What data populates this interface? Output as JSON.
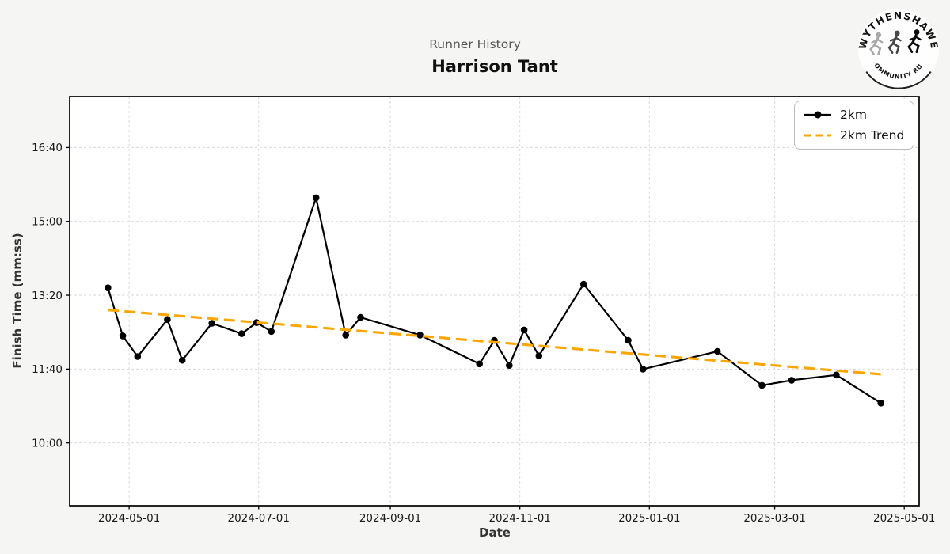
{
  "header": {
    "subtitle": "Runner History",
    "title": "Harrison Tant"
  },
  "logo": {
    "top_text": "WYTHENSHAWE",
    "bottom_text": "COMMUNITY RUN"
  },
  "colors": {
    "series": "#000000",
    "trend": "#FFA500",
    "background": "#f5f5f4",
    "plot_background": "#ffffff",
    "grid": "#d9d9d9",
    "spine": "#000000",
    "subtitle_text": "#555555",
    "title_text": "#111111"
  },
  "chart_data": {
    "type": "line",
    "title": "Runner History",
    "subtitle": "Harrison Tant",
    "xlabel": "Date",
    "ylabel": "Finish Time (mm:ss)",
    "grid": true,
    "legend_position": "upper right",
    "x_ticks": [
      "2024-05-01",
      "2024-07-01",
      "2024-09-01",
      "2024-11-01",
      "2025-01-01",
      "2025-03-01",
      "2025-05-01"
    ],
    "y_ticks": [
      {
        "label": "16:40",
        "seconds": 1000
      },
      {
        "label": "15:00",
        "seconds": 900
      },
      {
        "label": "13:20",
        "seconds": 800
      },
      {
        "label": "11:40",
        "seconds": 700
      },
      {
        "label": "10:00",
        "seconds": 600
      }
    ],
    "xlim_dates": [
      "2024-04-03",
      "2025-05-08"
    ],
    "ylim_seconds": [
      515,
      1069
    ],
    "series": [
      {
        "name": "2km",
        "style": "solid-marker",
        "color": "#000000",
        "points": [
          {
            "date": "2024-04-21",
            "time": "13:30",
            "seconds": 810
          },
          {
            "date": "2024-04-28",
            "time": "12:25",
            "seconds": 745
          },
          {
            "date": "2024-05-05",
            "time": "11:57",
            "seconds": 717
          },
          {
            "date": "2024-05-19",
            "time": "12:47",
            "seconds": 767
          },
          {
            "date": "2024-05-26",
            "time": "11:52",
            "seconds": 712
          },
          {
            "date": "2024-06-09",
            "time": "12:42",
            "seconds": 762
          },
          {
            "date": "2024-06-23",
            "time": "12:28",
            "seconds": 748
          },
          {
            "date": "2024-06-30",
            "time": "12:43",
            "seconds": 763
          },
          {
            "date": "2024-07-07",
            "time": "12:31",
            "seconds": 751
          },
          {
            "date": "2024-07-28",
            "time": "15:32",
            "seconds": 932
          },
          {
            "date": "2024-08-11",
            "time": "12:26",
            "seconds": 746
          },
          {
            "date": "2024-08-18",
            "time": "12:50",
            "seconds": 770
          },
          {
            "date": "2024-09-15",
            "time": "12:26",
            "seconds": 746
          },
          {
            "date": "2024-10-13",
            "time": "11:47",
            "seconds": 707
          },
          {
            "date": "2024-10-20",
            "time": "12:19",
            "seconds": 739
          },
          {
            "date": "2024-10-27",
            "time": "11:45",
            "seconds": 705
          },
          {
            "date": "2024-11-03",
            "time": "12:33",
            "seconds": 753
          },
          {
            "date": "2024-11-10",
            "time": "11:58",
            "seconds": 718
          },
          {
            "date": "2024-12-01",
            "time": "13:35",
            "seconds": 815
          },
          {
            "date": "2024-12-22",
            "time": "12:19",
            "seconds": 739
          },
          {
            "date": "2024-12-29",
            "time": "11:40",
            "seconds": 700
          },
          {
            "date": "2025-02-02",
            "time": "12:04",
            "seconds": 724
          },
          {
            "date": "2025-02-23",
            "time": "11:18",
            "seconds": 678
          },
          {
            "date": "2025-03-09",
            "time": "11:25",
            "seconds": 685
          },
          {
            "date": "2025-03-30",
            "time": "11:32",
            "seconds": 692
          },
          {
            "date": "2025-04-20",
            "time": "10:54",
            "seconds": 654
          }
        ]
      },
      {
        "name": "2km Trend",
        "style": "dashed",
        "color": "#FFA500",
        "points": [
          {
            "date": "2024-04-21",
            "time": "13:00",
            "seconds": 780
          },
          {
            "date": "2025-04-20",
            "time": "11:33",
            "seconds": 693
          }
        ]
      }
    ]
  }
}
